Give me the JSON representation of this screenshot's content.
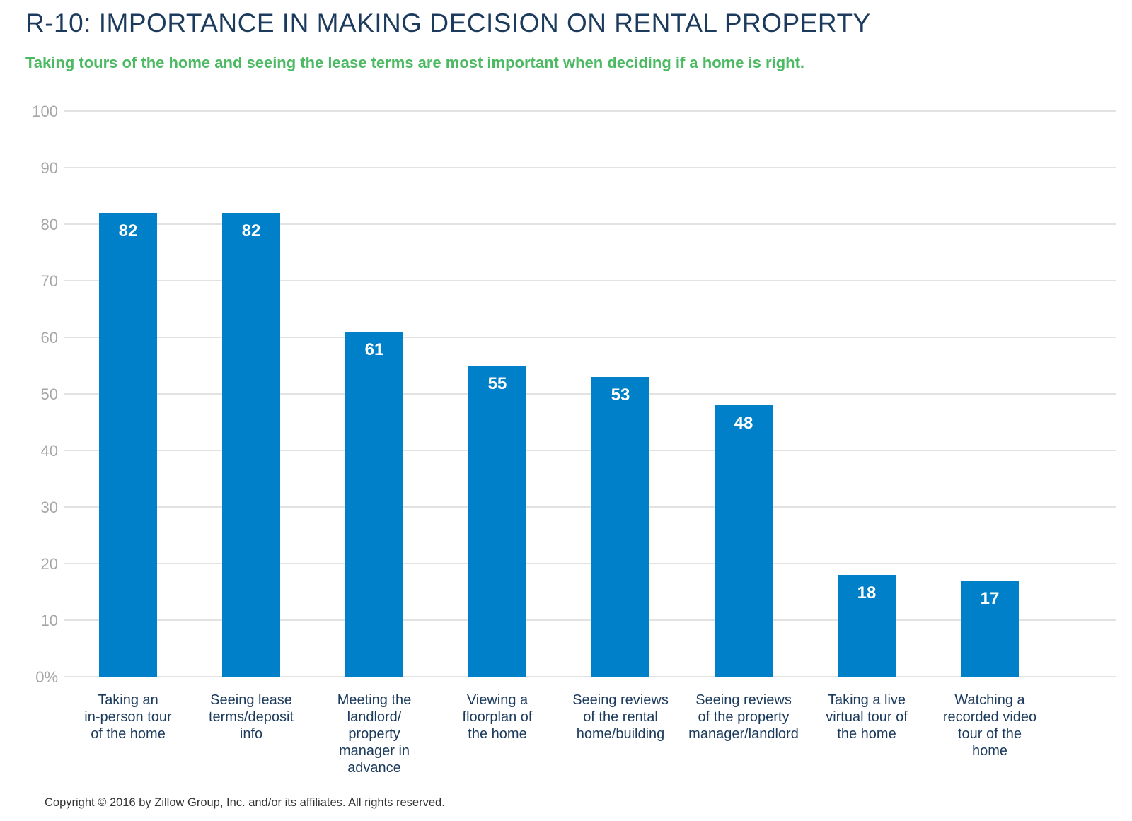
{
  "title": "R-10: IMPORTANCE IN MAKING DECISION ON RENTAL PROPERTY",
  "subtitle": "Taking tours of the home and seeing the lease terms are most important when deciding if a home is right.",
  "footer": "Copyright © 2016 by Zillow Group, Inc. and/or its affiliates. All rights reserved.",
  "colors": {
    "bar": "#0080c9",
    "grid": "#d0d0d0",
    "tick": "#a6a6a6",
    "label": "#1b3a5c",
    "subtitle": "#4cb963"
  },
  "chart_data": {
    "type": "bar",
    "categories": [
      "Taking an in-person tour of the home",
      "Seeing lease terms/deposit info",
      "Meeting the landlord/ property manager in advance",
      "Viewing a floorplan of the home",
      "Seeing reviews of the rental home/building",
      "Seeing reviews of the property manager/landlord",
      "Taking a live virtual tour of the home",
      "Watching a recorded video tour of the home"
    ],
    "category_lines": [
      [
        "Taking an",
        "in-person tour",
        "of the home"
      ],
      [
        "Seeing lease",
        "terms/deposit",
        "info"
      ],
      [
        "Meeting the",
        "landlord/",
        "property",
        "manager in",
        "advance"
      ],
      [
        "Viewing a",
        "floorplan of",
        "the home"
      ],
      [
        "Seeing reviews",
        "of the rental",
        "home/building"
      ],
      [
        "Seeing reviews",
        "of the property",
        "manager/landlord"
      ],
      [
        "Taking a live",
        "virtual tour of",
        "the home"
      ],
      [
        "Watching a",
        "recorded video",
        "tour of the",
        "home"
      ]
    ],
    "values": [
      82,
      82,
      61,
      55,
      53,
      48,
      18,
      17
    ],
    "data_labels": [
      "82",
      "82",
      "61",
      "55",
      "53",
      "48",
      "18",
      "17"
    ],
    "ylim": [
      0,
      100
    ],
    "yticks": [
      "0%",
      "10",
      "20",
      "30",
      "40",
      "50",
      "60",
      "70",
      "80",
      "90",
      "100"
    ],
    "grid": true,
    "legend": "none"
  }
}
